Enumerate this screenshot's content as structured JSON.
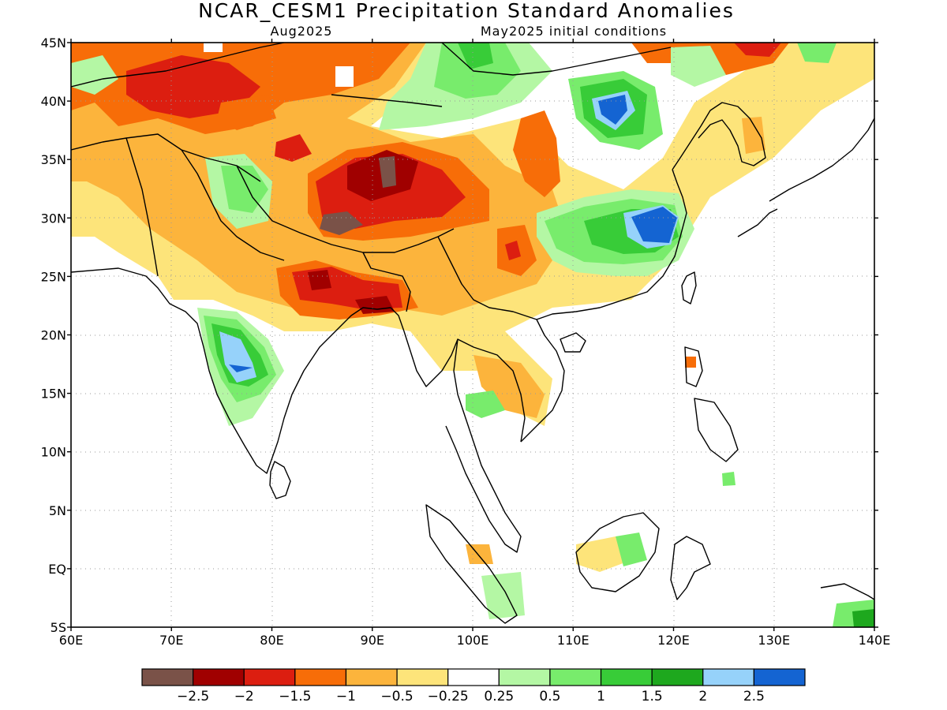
{
  "title": "NCAR_CESM1 Precipitation Standard Anomalies",
  "valid_month": "Aug2025",
  "init_label": "May2025 initial conditions",
  "axes": {
    "lon_labels": [
      "60E",
      "70E",
      "80E",
      "90E",
      "100E",
      "110E",
      "120E",
      "130E",
      "140E"
    ],
    "lat_labels": [
      "45N",
      "40N",
      "35N",
      "30N",
      "25N",
      "20N",
      "15N",
      "10N",
      "5N",
      "EQ",
      "5S"
    ]
  },
  "colorbar": {
    "colors": [
      "#7a5248",
      "#a00000",
      "#dc1e10",
      "#f76d08",
      "#fcb43c",
      "#fde47a",
      "#ffffff",
      "#b4f7a4",
      "#78ec6c",
      "#38cc38",
      "#1ea81e",
      "#96d2fa",
      "#1464d2"
    ],
    "labels": [
      "−2.5",
      "−2",
      "−1.5",
      "−1",
      "−0.5",
      "−0.25",
      "0.25",
      "0.5",
      "1",
      "1.5",
      "2",
      "2.5"
    ]
  }
}
